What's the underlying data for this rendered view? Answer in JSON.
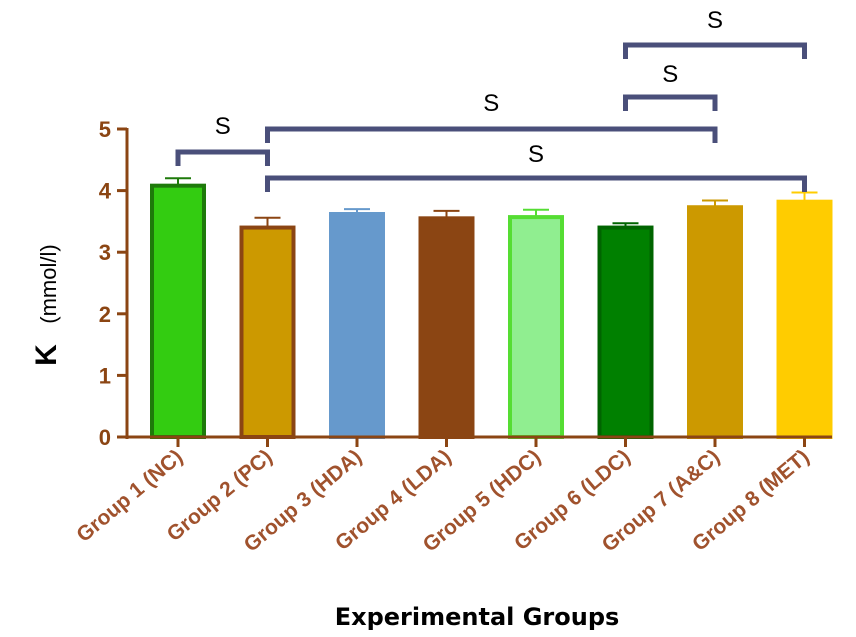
{
  "chart_data": {
    "type": "bar",
    "title": "",
    "ylabel_main": "K",
    "ylabel_unit": "(mmol/l)",
    "xlabel": "Experimental Groups",
    "ylim": [
      0,
      5
    ],
    "yticks": [
      "0",
      "1",
      "2",
      "3",
      "4",
      "5"
    ],
    "categories": [
      "Group 1 (NC)",
      "Group 2 (PC)",
      "Group 3 (HDA)",
      "Group 4 (LDA)",
      "Group 5 (HDC)",
      "Group 6 (LDC)",
      "Group 7 (A&C)",
      "Group 8 (MET)"
    ],
    "values": [
      4.08,
      3.4,
      3.62,
      3.55,
      3.57,
      3.4,
      3.73,
      3.82
    ],
    "errors": [
      0.12,
      0.16,
      0.08,
      0.12,
      0.12,
      0.07,
      0.11,
      0.15
    ],
    "colors": [
      "#33CC11",
      "#CC9900",
      "#6699CC",
      "#8B4513",
      "#90EE90",
      "#008000",
      "#CC9900",
      "#FFCC00"
    ],
    "border_colors": [
      "#1E7A0A",
      "#8B4513",
      "#6699CC",
      "#8B4513",
      "#55DD33",
      "#006400",
      "#CC9900",
      "#FFCC00"
    ],
    "axis_color": "#8B4513",
    "bracket_color": "#4A4F7A",
    "significance": [
      {
        "from": 0,
        "to": 1,
        "label": "S"
      },
      {
        "from": 1,
        "to": 6,
        "label": "S"
      },
      {
        "from": 1,
        "to": 7,
        "label": "S"
      },
      {
        "from": 5,
        "to": 6,
        "label": "S"
      },
      {
        "from": 5,
        "to": 7,
        "label": "S"
      }
    ]
  }
}
